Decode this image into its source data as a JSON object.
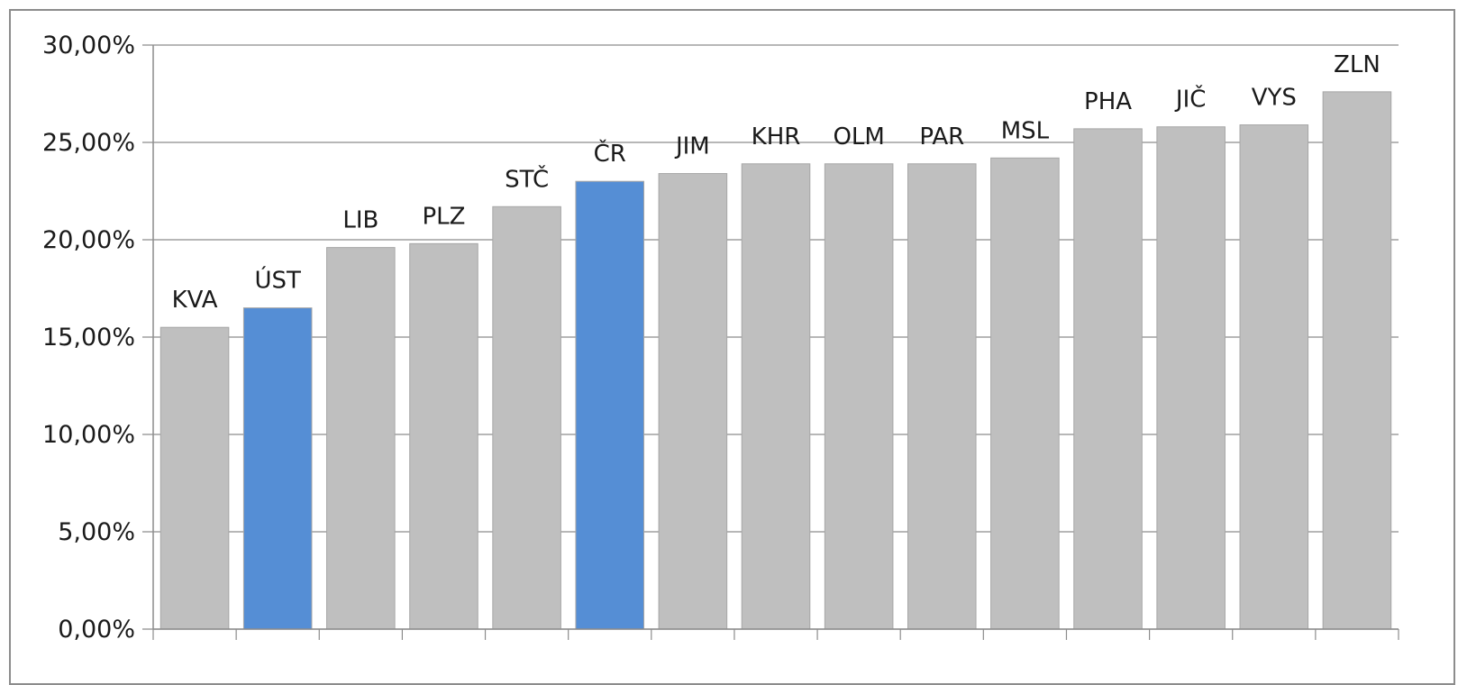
{
  "chart_data": {
    "type": "bar",
    "title": "",
    "xlabel": "",
    "ylabel": "",
    "ylim": [
      0,
      30
    ],
    "yticks": [
      "0,00%",
      "5,00%",
      "10,00%",
      "15,00%",
      "20,00%",
      "25,00%",
      "30,00%"
    ],
    "grid": true,
    "legend": "none",
    "categories": [
      "KVA",
      "ÚST",
      "LIB",
      "PLZ",
      "STČ",
      "ČR",
      "JIM",
      "KHR",
      "OLM",
      "PAR",
      "MSL",
      "PHA",
      "JIČ",
      "VYS",
      "ZLN"
    ],
    "values": [
      15.5,
      16.5,
      19.6,
      19.8,
      21.7,
      23.0,
      23.4,
      23.9,
      23.9,
      23.9,
      24.2,
      25.7,
      25.8,
      25.9,
      27.6
    ],
    "highlighted": [
      "ÚST",
      "ČR"
    ],
    "colors": {
      "default": "#bfbfbf",
      "highlight": "#558ed5",
      "grid": "#8c8c8c",
      "bar_border": "#a6a6a6"
    }
  }
}
